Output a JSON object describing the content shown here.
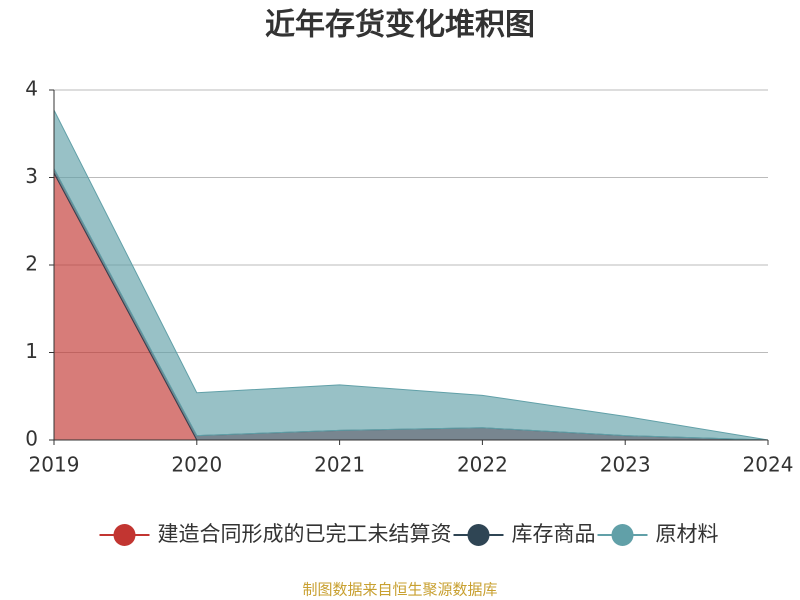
{
  "chart_data": {
    "type": "stacked-area",
    "title": "近年存货变化堆积图",
    "categories": [
      "2019",
      "2020",
      "2021",
      "2022",
      "2023",
      "2024"
    ],
    "series": [
      {
        "name": "建造合同形成的已完工未结算资",
        "color": "#c23531",
        "values": [
          3.05,
          0,
          0,
          0,
          0,
          0
        ]
      },
      {
        "name": "库存商品",
        "color": "#2f4554",
        "values": [
          0.05,
          0.05,
          0.11,
          0.14,
          0.05,
          0
        ]
      },
      {
        "name": "原材料",
        "color": "#61a0a8",
        "values": [
          0.67,
          0.49,
          0.52,
          0.37,
          0.22,
          0
        ]
      }
    ],
    "ylim": [
      0,
      4
    ],
    "yticks": [
      0,
      1,
      2,
      3,
      4
    ],
    "grid": true,
    "source": "制图数据来自恒生聚源数据库"
  }
}
